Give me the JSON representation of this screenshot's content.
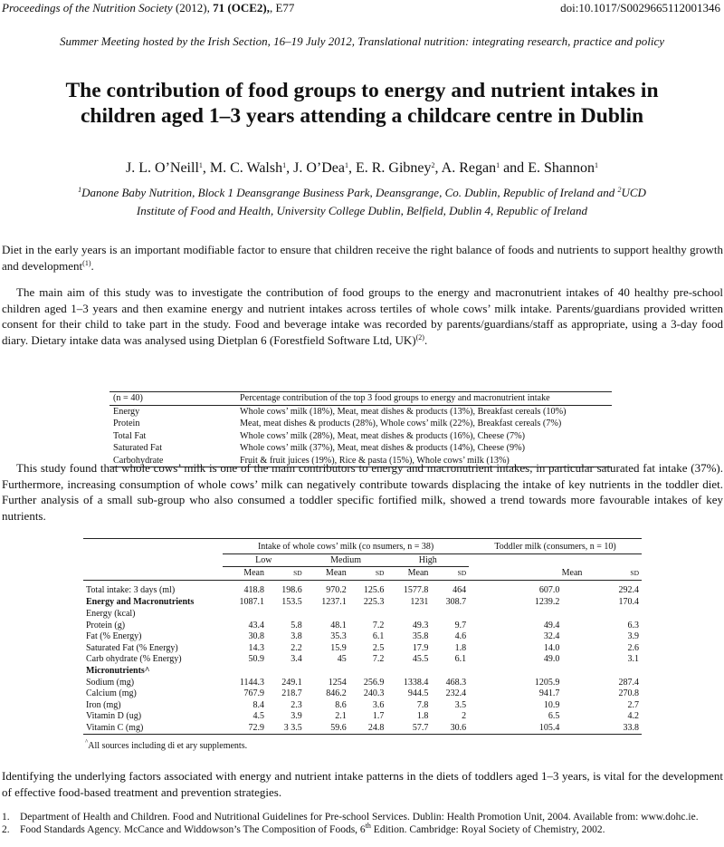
{
  "header": {
    "journal": "Proceedings of the Nutrition Society",
    "year": "(2012),",
    "volume": "71",
    "issue": "(OCE2),",
    "page": "E77",
    "doi": "doi:10.1017/S0029665112001346"
  },
  "meeting": "Summer Meeting hosted by the Irish Section, 16–19 July 2012, Translational nutrition: integrating research, practice and policy",
  "title_line1": "The contribution of food groups to energy and nutrient intakes in",
  "title_line2": "children aged 1–3 years attending a childcare centre in Dublin",
  "authors": [
    {
      "name": "J. L. O’Neill",
      "aff": "1",
      "sep": ", "
    },
    {
      "name": "M. C. Walsh",
      "aff": "1",
      "sep": ", "
    },
    {
      "name": "J. O’Dea",
      "aff": "1",
      "sep": ", "
    },
    {
      "name": "E. R. Gibney",
      "aff": "2",
      "sep": ", "
    },
    {
      "name": "A. Regan",
      "aff": "1",
      "sep": " and "
    },
    {
      "name": "E. Shannon",
      "aff": "1",
      "sep": ""
    }
  ],
  "affiliations": {
    "num1": "1",
    "text1": "Danone Baby Nutrition, Block 1 Deansgrange Business Park, Deansgrange, Co. Dublin, Republic of Ireland and ",
    "num2": "2",
    "text2": "UCD",
    "line2": "Institute of Food and Health, University College Dublin, Belfield, Dublin 4, Republic of Ireland"
  },
  "para1": "Diet in the early years is an important modifiable factor to ensure that children receive the right balance of foods and nutrients to support healthy growth and development",
  "para1_ref": "(1)",
  "para2": "The main aim of this study was to investigate the contribution of food groups to the energy and macronutrient intakes of 40 healthy pre-school children aged 1–3 years and then examine energy and nutrient intakes across tertiles of whole cows’ milk intake. Parents/guardians provided written consent for their child to take part in the study. Food and beverage intake was recorded by parents/guardians/staff as appropriate, using a 3-day food diary. Dietary intake data was analysed using Dietplan 6 (Forestfield Software Ltd, UK)",
  "para2_ref": "(2)",
  "table1": {
    "head_left": "(n = 40)",
    "head_right": "Percentage contribution of the top 3 food groups to energy and macronutrient intake",
    "rows": [
      {
        "label": "Energy",
        "value": "Whole cows’ milk (18%), Meat, meat dishes & products (13%), Breakfast cereals (10%)"
      },
      {
        "label": "Protein",
        "value": "Meat, meat dishes & products (28%), Whole cows’ milk (22%), Breakfast cereals (7%)"
      },
      {
        "label": "Total Fat",
        "value": "Whole cows’ milk (28%), Meat, meat dishes & products (16%), Cheese (7%)"
      },
      {
        "label": "Saturated Fat",
        "value": "Whole cows’ milk (37%), Meat, meat dishes & products (14%), Cheese (9%)"
      },
      {
        "label": "Carbohydrate",
        "value": "Fruit & fruit juices (19%), Rice & pasta (15%), Whole cows’ milk (13%)"
      }
    ]
  },
  "para3": "This study found that whole cows’ milk is one of the main contributors to energy and macronutrient intakes, in particular saturated fat intake (37%). Furthermore, increasing consumption of whole cows’ milk can negatively contribute towards displacing the intake of key nutrients in the toddler diet. Further analysis of a small sub-group who also consumed a toddler specific fortified milk, showed a trend towards more favourable intakes of key nutrients.",
  "table2": {
    "group1": "Intake of whole cows’ milk (co nsumers, n = 38)",
    "group2": "Toddler milk (consumers, n = 10)",
    "tertiles": [
      "Low",
      "Medium",
      "High"
    ],
    "mean": "Mean",
    "sd": "SD",
    "rows": [
      {
        "label": "Total intake: 3 days (ml)",
        "bold": false,
        "v": [
          "418.8",
          "198.6",
          "970.2",
          "125.6",
          "1577.8",
          "464",
          "607.0",
          "292.4"
        ]
      },
      {
        "label": "Energy and Macronutrients",
        "bold": true,
        "v": [
          "1087.1",
          "153.5",
          "1237.1",
          "225.3",
          "1231",
          "308.7",
          "1239.2",
          "170.4"
        ]
      },
      {
        "label": "Energy (kcal)",
        "bold": false,
        "v": [
          "",
          "",
          "",
          "",
          "",
          "",
          "",
          ""
        ]
      },
      {
        "label": "Protein (g)",
        "bold": false,
        "v": [
          "43.4",
          "5.8",
          "48.1",
          "7.2",
          "49.3",
          "9.7",
          "49.4",
          "6.3"
        ]
      },
      {
        "label": "Fat (% Energy)",
        "bold": false,
        "v": [
          "30.8",
          "3.8",
          "35.3",
          "6.1",
          "35.8",
          "4.6",
          "32.4",
          "3.9"
        ]
      },
      {
        "label": "Saturated Fat (% Energy)",
        "bold": false,
        "v": [
          "14.3",
          "2.2",
          "15.9",
          "2.5",
          "17.9",
          "1.8",
          "14.0",
          "2.6"
        ]
      },
      {
        "label": "Carb ohydrate (% Energy)",
        "bold": false,
        "v": [
          "50.9",
          "3.4",
          "45",
          "7.2",
          "45.5",
          "6.1",
          "49.0",
          "3.1"
        ]
      },
      {
        "label": "Micronutrients^",
        "bold": true,
        "v": [
          "",
          "",
          "",
          "",
          "",
          "",
          "",
          ""
        ]
      },
      {
        "label": "Sodium (mg)",
        "bold": false,
        "v": [
          "1144.3",
          "249.1",
          "1254",
          "256.9",
          "1338.4",
          "468.3",
          "1205.9",
          "287.4"
        ]
      },
      {
        "label": "Calcium (mg)",
        "bold": false,
        "v": [
          "767.9",
          "218.7",
          "846.2",
          "240.3",
          "944.5",
          "232.4",
          "941.7",
          "270.8"
        ]
      },
      {
        "label": "Iron (mg)",
        "bold": false,
        "v": [
          "8.4",
          "2.3",
          "8.6",
          "3.6",
          "7.8",
          "3.5",
          "10.9",
          "2.7"
        ]
      },
      {
        "label": "Vitamin D (ug)",
        "bold": false,
        "v": [
          "4.5",
          "3.9",
          "2.1",
          "1.7",
          "1.8",
          "2",
          "6.5",
          "4.2"
        ]
      },
      {
        "label": "Vitamin C (mg)",
        "bold": false,
        "v": [
          "72.9",
          "3 3.5",
          "59.6",
          "24.8",
          "57.7",
          "30.6",
          "105.4",
          "33.8"
        ]
      }
    ],
    "footnote_mark": "^",
    "footnote": "All sources including di et ary supplements."
  },
  "para4": "Identifying the underlying factors associated with energy and nutrient intake patterns in the diets of toddlers aged 1–3 years, is vital for the development of effective food-based treatment and prevention strategies.",
  "refs": [
    {
      "num": "1.",
      "text": "Department of Health and Children. Food and Nutritional Guidelines for Pre-school Services. Dublin: Health Promotion Unit, 2004. Available from: www.dohc.ie."
    },
    {
      "num": "2.",
      "pre": "Food Standards Agency. McCance and Widdowson’s The Composition of Foods, 6",
      "sup": "th",
      "post": " Edition. Cambridge: Royal Society of Chemistry, 2002."
    }
  ]
}
